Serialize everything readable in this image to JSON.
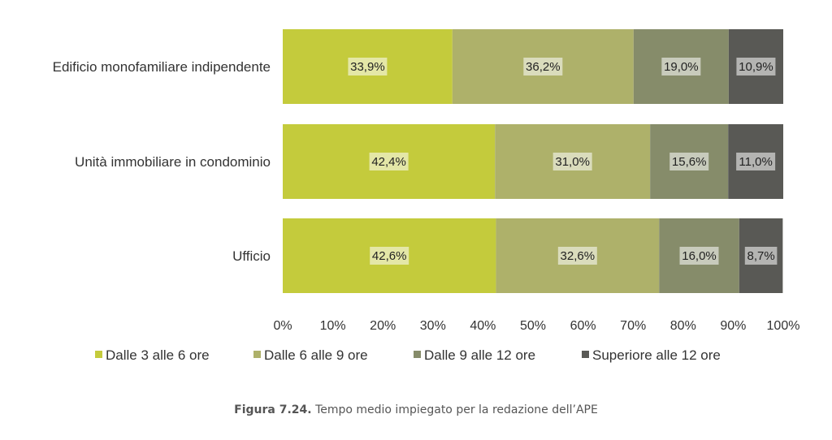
{
  "chart_data": {
    "type": "bar",
    "orientation": "horizontal",
    "stacked": true,
    "categories": [
      "Edificio monofamiliare indipendente",
      "Unità immobiliare in condominio",
      "Ufficio"
    ],
    "series": [
      {
        "name": "Dalle 3 alle 6 ore",
        "color": "#c4cb3c",
        "values": [
          33.9,
          42.4,
          42.6
        ],
        "labels": [
          "33,9%",
          "42,4%",
          "42,6%"
        ]
      },
      {
        "name": "Dalle 6 alle 9 ore",
        "color": "#aeb16a",
        "values": [
          36.2,
          31.0,
          32.6
        ],
        "labels": [
          "36,2%",
          "31,0%",
          "32,6%"
        ]
      },
      {
        "name": "Dalle 9 alle 12 ore",
        "color": "#868c6a",
        "values": [
          19.0,
          15.6,
          16.0
        ],
        "labels": [
          "19,0%",
          "15,6%",
          "16,0%"
        ]
      },
      {
        "name": "Superiore alle 12 ore",
        "color": "#595955",
        "values": [
          10.9,
          11.0,
          8.7
        ],
        "labels": [
          "10,9%",
          "11,0%",
          "8,7%"
        ]
      }
    ],
    "xlim": [
      0,
      100
    ],
    "xticks": [
      "0%",
      "10%",
      "20%",
      "30%",
      "40%",
      "50%",
      "60%",
      "70%",
      "80%",
      "90%",
      "100%"
    ],
    "grid": false,
    "legend_position": "bottom"
  },
  "caption": {
    "figure_label": "Figura 7.24.",
    "text": "Tempo medio impiegato per la redazione dell’APE"
  }
}
